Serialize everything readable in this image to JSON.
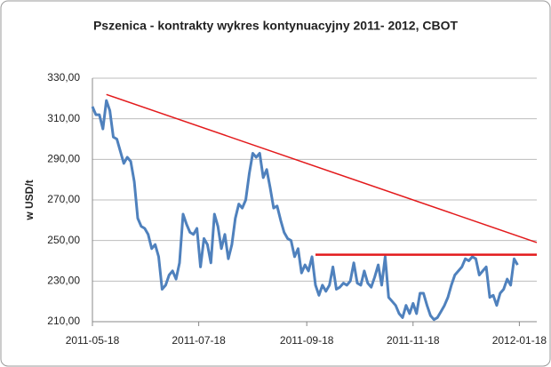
{
  "chart_data": {
    "type": "line",
    "title": "Pszenica - kontrakty wykres kontynuacyjny 2011-  2012, CBOT",
    "y_label": "w USD/t",
    "x": [
      "2011-05-18",
      "2011-05-20",
      "2011-05-22",
      "2011-05-24",
      "2011-05-26",
      "2011-05-28",
      "2011-05-30",
      "2011-06-01",
      "2011-06-03",
      "2011-06-05",
      "2011-06-07",
      "2011-06-09",
      "2011-06-11",
      "2011-06-13",
      "2011-06-15",
      "2011-06-17",
      "2011-06-19",
      "2011-06-21",
      "2011-06-23",
      "2011-06-25",
      "2011-06-27",
      "2011-06-29",
      "2011-07-01",
      "2011-07-03",
      "2011-07-05",
      "2011-07-07",
      "2011-07-09",
      "2011-07-11",
      "2011-07-13",
      "2011-07-15",
      "2011-07-17",
      "2011-07-19",
      "2011-07-21",
      "2011-07-23",
      "2011-07-25",
      "2011-07-27",
      "2011-07-29",
      "2011-07-31",
      "2011-08-02",
      "2011-08-04",
      "2011-08-06",
      "2011-08-08",
      "2011-08-10",
      "2011-08-12",
      "2011-08-14",
      "2011-08-16",
      "2011-08-18",
      "2011-08-20",
      "2011-08-22",
      "2011-08-24",
      "2011-08-26",
      "2011-08-28",
      "2011-08-30",
      "2011-09-01",
      "2011-09-03",
      "2011-09-05",
      "2011-09-07",
      "2011-09-09",
      "2011-09-11",
      "2011-09-13",
      "2011-09-15",
      "2011-09-17",
      "2011-09-19",
      "2011-09-21",
      "2011-09-23",
      "2011-09-25",
      "2011-09-27",
      "2011-09-29",
      "2011-10-01",
      "2011-10-03",
      "2011-10-05",
      "2011-10-07",
      "2011-10-09",
      "2011-10-11",
      "2011-10-13",
      "2011-10-15",
      "2011-10-17",
      "2011-10-19",
      "2011-10-21",
      "2011-10-23",
      "2011-10-25",
      "2011-10-27",
      "2011-10-29",
      "2011-10-31",
      "2011-11-02",
      "2011-11-04",
      "2011-11-06",
      "2011-11-08",
      "2011-11-10",
      "2011-11-12",
      "2011-11-14",
      "2011-11-16",
      "2011-11-18",
      "2011-11-20",
      "2011-11-22",
      "2011-11-24",
      "2011-11-26",
      "2011-11-28",
      "2011-11-30",
      "2011-12-02",
      "2011-12-04",
      "2011-12-06",
      "2011-12-08",
      "2011-12-10",
      "2011-12-12",
      "2011-12-14",
      "2011-12-16",
      "2011-12-18",
      "2011-12-20",
      "2011-12-22",
      "2011-12-24",
      "2011-12-26",
      "2011-12-28",
      "2011-12-30",
      "2012-01-01",
      "2012-01-03",
      "2012-01-05",
      "2012-01-07",
      "2012-01-09",
      "2012-01-11",
      "2012-01-13",
      "2012-01-15",
      "2012-01-17"
    ],
    "series": [
      {
        "color": "#4f81bd",
        "values": [
          316,
          312,
          312,
          305,
          319,
          314,
          301,
          300,
          294,
          288,
          291,
          289,
          279,
          261,
          257,
          256,
          253,
          246,
          248,
          242,
          226,
          228,
          233,
          235,
          231,
          239,
          263,
          258,
          254,
          253,
          256,
          237,
          251,
          248,
          239,
          263,
          257,
          246,
          253,
          241,
          248,
          261,
          268,
          266,
          270,
          283,
          293,
          291,
          293,
          281,
          285,
          276,
          266,
          267,
          260,
          254,
          251,
          250,
          242,
          246,
          234,
          238,
          235,
          242,
          228,
          223,
          228,
          225,
          228,
          237,
          226,
          227,
          229,
          228,
          230,
          239,
          229,
          228,
          235,
          229,
          227,
          232,
          238,
          228,
          242,
          222,
          220,
          218,
          214,
          212,
          218,
          214,
          219,
          214,
          224,
          224,
          218,
          213,
          211,
          212,
          215,
          218,
          222,
          228,
          233,
          235,
          237,
          241,
          240,
          242,
          241,
          233,
          235,
          237,
          222,
          223,
          218,
          224,
          226,
          231,
          228,
          241,
          238
        ]
      }
    ],
    "trend_lines": [
      {
        "color": "#e31a1c",
        "x": [
          "2011-05-26",
          "2012-01-28"
        ],
        "values": [
          322,
          249
        ]
      },
      {
        "color": "#e31a1c",
        "x": [
          "2011-09-23",
          "2012-01-28"
        ],
        "values": [
          243,
          243
        ]
      }
    ],
    "xlim": [
      "2011-05-18",
      "2012-01-28"
    ],
    "xticks": [
      "2011-05-18",
      "2011-07-18",
      "2011-09-18",
      "2011-11-18",
      "2012-01-18"
    ],
    "ylim": [
      210,
      330
    ],
    "yticks": [
      {
        "value": 210,
        "label": "210,00"
      },
      {
        "value": 230,
        "label": "230,00"
      },
      {
        "value": 250,
        "label": "250,00"
      },
      {
        "value": 270,
        "label": "270,00"
      },
      {
        "value": 290,
        "label": "290,00"
      },
      {
        "value": 310,
        "label": "310,00"
      },
      {
        "value": 330,
        "label": "330,00"
      }
    ],
    "grid": true
  }
}
